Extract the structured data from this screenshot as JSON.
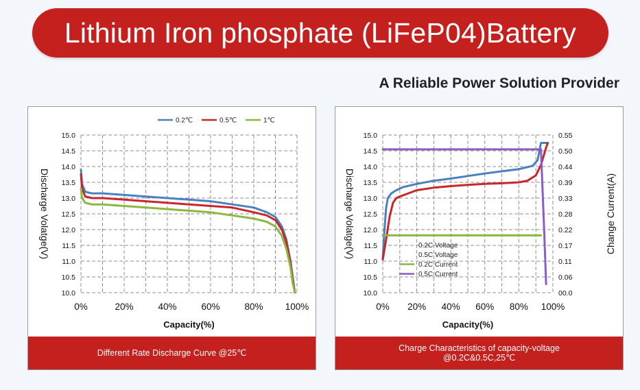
{
  "header": {
    "title": "Lithium Iron phosphate (LiFeP04)Battery",
    "subtitle": "A Reliable Power Solution Provider"
  },
  "colors": {
    "brand_red": "#c4201e",
    "series_blue": "#4a7fc0",
    "series_red": "#c8262a",
    "series_green": "#8ab73e",
    "series_purple": "#8a5cc4"
  },
  "chart_data": [
    {
      "type": "line",
      "caption": "Different Rate Discharge Curve @25℃",
      "xlabel": "Capacity(%)",
      "ylabel": "Discharge Volatge(V)",
      "xlim": [
        0,
        100
      ],
      "ylim": [
        10.0,
        15.0
      ],
      "x_ticks": [
        "0%",
        "20%",
        "40%",
        "60%",
        "80%",
        "100%"
      ],
      "y_ticks": [
        "10.0",
        "10.5",
        "11.0",
        "11.5",
        "12.0",
        "12.5",
        "13.0",
        "13.5",
        "14.0",
        "14.5",
        "15.0"
      ],
      "grid": true,
      "legend_position": "top-right",
      "series": [
        {
          "name": "0.2℃",
          "color": "#4a7fc0",
          "x": [
            0,
            0.5,
            2,
            5,
            10,
            20,
            30,
            40,
            50,
            60,
            70,
            80,
            86,
            90,
            93,
            95,
            97,
            98,
            99
          ],
          "y": [
            13.9,
            13.45,
            13.2,
            13.15,
            13.15,
            13.1,
            13.05,
            13.0,
            12.95,
            12.9,
            12.8,
            12.7,
            12.55,
            12.4,
            12.1,
            11.7,
            11.0,
            10.5,
            10.0
          ]
        },
        {
          "name": "0.5℃",
          "color": "#c8262a",
          "x": [
            0,
            0.5,
            2,
            5,
            10,
            20,
            30,
            40,
            50,
            60,
            70,
            80,
            86,
            90,
            93,
            95,
            97,
            98,
            99
          ],
          "y": [
            13.75,
            13.3,
            13.05,
            13.0,
            13.0,
            12.95,
            12.9,
            12.85,
            12.8,
            12.75,
            12.7,
            12.55,
            12.45,
            12.3,
            12.0,
            11.6,
            10.9,
            10.4,
            10.0
          ]
        },
        {
          "name": "1℃",
          "color": "#8ab73e",
          "x": [
            0,
            0.5,
            2,
            5,
            10,
            20,
            30,
            40,
            50,
            60,
            70,
            80,
            86,
            90,
            93,
            95,
            97,
            98,
            99
          ],
          "y": [
            13.3,
            13.0,
            12.85,
            12.8,
            12.8,
            12.75,
            12.7,
            12.65,
            12.6,
            12.55,
            12.45,
            12.35,
            12.25,
            12.1,
            11.8,
            11.4,
            10.8,
            10.3,
            10.0
          ]
        }
      ]
    },
    {
      "type": "line",
      "caption": "Charge Characteristics of capacity-voltage @0.2C&0.5C,25℃",
      "xlabel": "Capacity(%)",
      "ylabel": "Discharge Volatge(V)",
      "y2label": "Change Current(A)",
      "xlim": [
        0,
        100
      ],
      "ylim": [
        10.0,
        15.0
      ],
      "y2lim": [
        0.0,
        0.55
      ],
      "x_ticks": [
        "0%",
        "20%",
        "40%",
        "60%",
        "80%",
        "100%"
      ],
      "y_ticks": [
        "10.0",
        "10.5",
        "11.0",
        "11.5",
        "12.0",
        "12.5",
        "13.0",
        "13.5",
        "14.0",
        "14.5",
        "15.0"
      ],
      "y2_ticks": [
        "00.0",
        "0.06",
        "0.11",
        "0.17",
        "0.22",
        "0.28",
        "0.33",
        "0.39",
        "0.44",
        "0.50",
        "0.55"
      ],
      "grid": true,
      "legend_position": "bottom-left",
      "series": [
        {
          "name": "0.2C Voltage",
          "color": "#4a7fc0",
          "axis": "left",
          "x": [
            0,
            1,
            2,
            3,
            5,
            8,
            12,
            20,
            30,
            40,
            50,
            60,
            70,
            80,
            88,
            91,
            93,
            94,
            97
          ],
          "y": [
            11.1,
            12.0,
            12.7,
            13.0,
            13.15,
            13.25,
            13.35,
            13.45,
            13.55,
            13.62,
            13.7,
            13.78,
            13.85,
            13.92,
            14.02,
            14.2,
            14.75,
            14.75,
            14.75
          ]
        },
        {
          "name": "0.5C Voltage",
          "color": "#c8262a",
          "axis": "left",
          "x": [
            0,
            2,
            4,
            6,
            8,
            10,
            15,
            20,
            30,
            40,
            50,
            60,
            70,
            80,
            85,
            90,
            93,
            96,
            97
          ],
          "y": [
            11.05,
            11.7,
            12.4,
            12.85,
            13.0,
            13.05,
            13.15,
            13.25,
            13.33,
            13.38,
            13.42,
            13.45,
            13.47,
            13.5,
            13.55,
            13.72,
            14.05,
            14.6,
            14.75
          ]
        },
        {
          "name": "0.2C Current",
          "color": "#8ab73e",
          "axis": "right",
          "x": [
            0,
            93
          ],
          "y": [
            0.2,
            0.2
          ]
        },
        {
          "name": "0.5C Current",
          "color": "#8a5cc4",
          "axis": "right",
          "x": [
            0,
            92,
            93,
            95,
            96
          ],
          "y": [
            0.5,
            0.5,
            0.5,
            0.2,
            0.03
          ]
        }
      ]
    }
  ]
}
